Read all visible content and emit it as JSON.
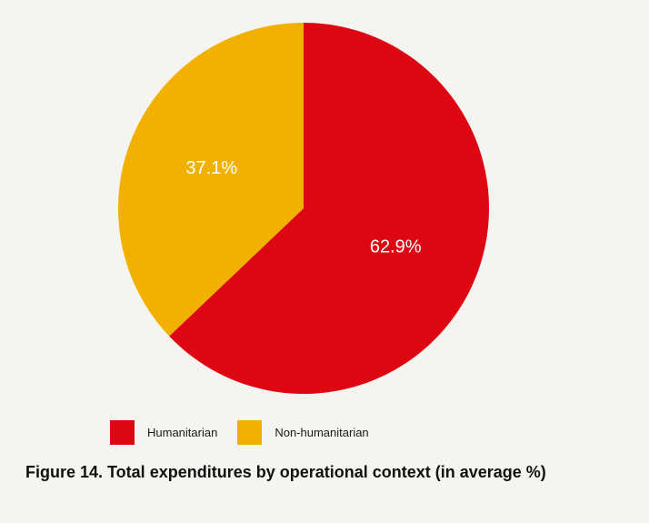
{
  "chart_data": {
    "type": "pie",
    "categories": [
      "Humanitarian",
      "Non-humanitarian"
    ],
    "values": [
      62.9,
      37.1
    ],
    "labels": [
      "62.9%",
      "37.1%"
    ],
    "colors": [
      "#de0613",
      "#f2b100"
    ],
    "start_angle": "12 o'clock",
    "direction": "clockwise",
    "legend_position": "bottom-left"
  },
  "legend": {
    "items": [
      {
        "label": "Humanitarian",
        "color": "#de0613"
      },
      {
        "label": "Non-humanitarian",
        "color": "#f2b100"
      }
    ]
  },
  "caption": "Figure 14. Total expenditures by operational context (in average %)"
}
